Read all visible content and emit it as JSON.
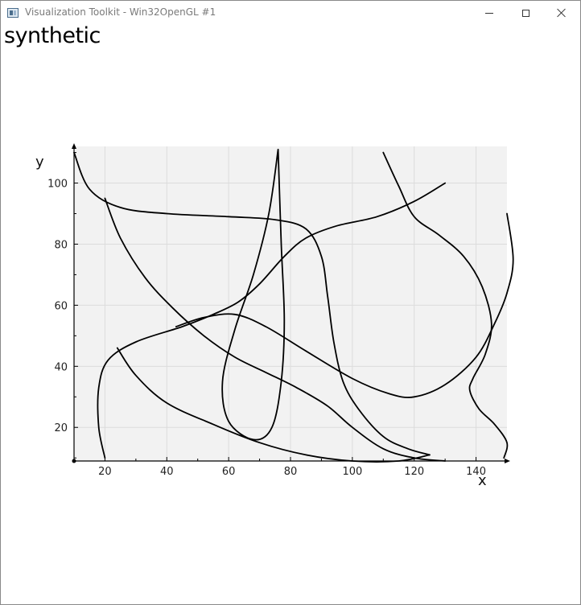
{
  "window": {
    "title": "Visualization Toolkit - Win32OpenGL #1"
  },
  "icons": {
    "app": "vtk-window-icon",
    "minimize": "minimize-icon",
    "maximize": "maximize-icon",
    "close": "close-icon"
  },
  "chart_data": {
    "type": "line",
    "title": "synthetic",
    "xlabel": "x",
    "ylabel": "y",
    "xlim": [
      10,
      150
    ],
    "ylim": [
      9,
      112
    ],
    "xticks": [
      20,
      40,
      60,
      80,
      100,
      120,
      140
    ],
    "yticks": [
      20,
      40,
      60,
      80,
      100
    ],
    "grid": true,
    "legend": "none",
    "line_color": "#000000",
    "plot_background": "#f2f2f2",
    "grid_color": "#dcdcdc",
    "series": [
      {
        "points": [
          [
            20,
            10
          ],
          [
            18,
            20
          ],
          [
            18,
            33
          ],
          [
            21,
            42
          ],
          [
            30,
            48
          ],
          [
            45,
            53
          ],
          [
            55,
            57
          ],
          [
            63,
            61
          ],
          [
            70,
            67
          ],
          [
            78,
            76
          ],
          [
            85,
            82
          ],
          [
            95,
            86
          ],
          [
            108,
            89
          ],
          [
            120,
            94
          ],
          [
            130,
            100
          ]
        ]
      },
      {
        "points": [
          [
            20,
            95
          ],
          [
            25,
            82
          ],
          [
            33,
            69
          ],
          [
            42,
            59
          ],
          [
            52,
            50
          ],
          [
            62,
            43
          ],
          [
            72,
            38
          ],
          [
            82,
            33
          ],
          [
            92,
            27
          ],
          [
            100,
            20
          ],
          [
            110,
            13
          ],
          [
            120,
            10
          ],
          [
            130,
            9
          ]
        ]
      },
      {
        "points": [
          [
            10,
            110
          ],
          [
            15,
            98
          ],
          [
            25,
            92
          ],
          [
            40,
            90
          ],
          [
            60,
            89
          ],
          [
            75,
            88
          ],
          [
            85,
            85
          ],
          [
            90,
            76
          ],
          [
            92,
            63
          ],
          [
            94,
            48
          ],
          [
            97,
            35
          ],
          [
            102,
            26
          ],
          [
            110,
            17
          ],
          [
            118,
            13
          ],
          [
            125,
            11
          ]
        ]
      },
      {
        "points": [
          [
            76,
            111
          ],
          [
            73,
            90
          ],
          [
            68,
            70
          ],
          [
            62,
            52
          ],
          [
            58,
            35
          ],
          [
            60,
            22
          ],
          [
            68,
            16
          ],
          [
            74,
            20
          ],
          [
            77,
            35
          ],
          [
            78,
            55
          ],
          [
            77,
            80
          ],
          [
            76,
            111
          ]
        ]
      },
      {
        "points": [
          [
            24,
            46
          ],
          [
            30,
            37
          ],
          [
            40,
            28
          ],
          [
            55,
            21
          ],
          [
            70,
            15
          ],
          [
            85,
            11
          ],
          [
            100,
            9
          ],
          [
            115,
            9
          ],
          [
            125,
            11
          ]
        ]
      },
      {
        "points": [
          [
            43,
            53
          ],
          [
            52,
            56
          ],
          [
            62,
            57
          ],
          [
            72,
            53
          ],
          [
            85,
            45
          ],
          [
            100,
            36
          ],
          [
            112,
            31
          ],
          [
            120,
            30
          ],
          [
            130,
            34
          ],
          [
            140,
            43
          ],
          [
            146,
            54
          ],
          [
            150,
            64
          ],
          [
            152,
            75
          ],
          [
            150,
            90
          ]
        ]
      },
      {
        "points": [
          [
            110,
            110
          ],
          [
            115,
            99
          ],
          [
            120,
            89
          ],
          [
            128,
            83
          ],
          [
            136,
            76
          ],
          [
            142,
            66
          ],
          [
            145,
            54
          ],
          [
            143,
            44
          ],
          [
            139,
            36
          ],
          [
            138,
            32
          ],
          [
            141,
            26
          ],
          [
            146,
            21
          ],
          [
            150,
            15
          ],
          [
            149,
            10
          ]
        ]
      }
    ]
  }
}
